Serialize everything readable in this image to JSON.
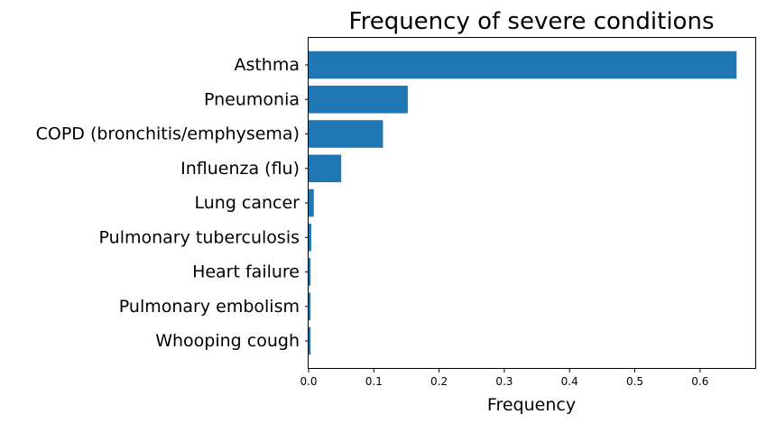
{
  "chart_data": {
    "type": "bar",
    "orientation": "horizontal",
    "title": "Frequency of severe conditions",
    "xlabel": "Frequency",
    "ylabel": "",
    "categories": [
      "Asthma",
      "Pneumonia",
      "COPD (bronchitis/emphysema)",
      "Influenza (flu)",
      "Lung cancer",
      "Pulmonary tuberculosis",
      "Heart failure",
      "Pulmonary embolism",
      "Whooping cough"
    ],
    "values": [
      0.656,
      0.152,
      0.114,
      0.05,
      0.008,
      0.004,
      0.003,
      0.003,
      0.003
    ],
    "xlim": [
      0,
      0.686
    ],
    "xticks": [
      0.0,
      0.1,
      0.2,
      0.3,
      0.4,
      0.5,
      0.6
    ],
    "xtick_labels": [
      "0.0",
      "0.1",
      "0.2",
      "0.3",
      "0.4",
      "0.5",
      "0.6"
    ],
    "bar_color": "#1f77b4",
    "grid": false,
    "legend": "none"
  }
}
